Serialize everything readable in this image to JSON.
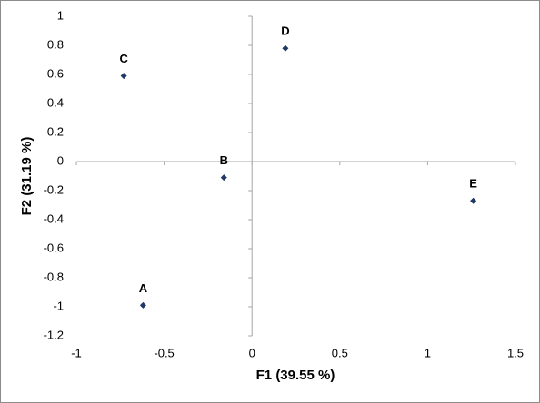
{
  "chart_data": {
    "type": "scatter",
    "x_label": "F1 (39.55 %)",
    "y_label": "F2 (31.19 %)",
    "x": [
      -0.62,
      -0.16,
      -0.73,
      0.19,
      1.26
    ],
    "values": [
      -0.99,
      -0.11,
      0.59,
      0.78,
      -0.27
    ],
    "point_labels": [
      "A",
      "B",
      "C",
      "D",
      "E"
    ],
    "color": "#1f3864",
    "xlim": [
      -1,
      1.5
    ],
    "xticks": [
      -1,
      -0.5,
      0,
      0.5,
      1,
      1.5
    ],
    "ylim": [
      -1.2,
      1
    ],
    "yticks": [
      1,
      0.8,
      0.6,
      0.4,
      0.2,
      0,
      -0.2,
      -0.4,
      -0.6,
      -0.8,
      -1,
      -1.2
    ],
    "grid": false
  }
}
